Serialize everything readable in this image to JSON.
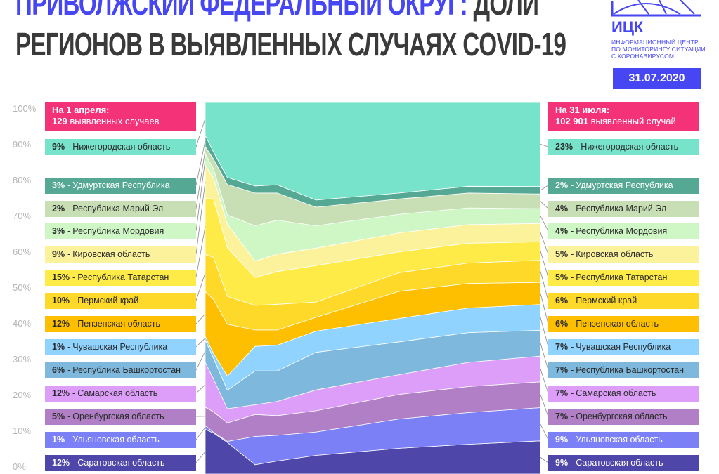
{
  "title": {
    "line1_blue": "ПРИВОЛЖСКИЙ ФЕДЕРАЛЬНЫЙ ОКРУГ:",
    "line1_dark": "ДОЛИ",
    "line2": "РЕГИОНОВ В ВЫЯВЛЕННЫХ СЛУЧАЯХ COVID-19"
  },
  "logo": {
    "abbr": "ИЦК",
    "sub": [
      "ИНФОРМАЦИОННЫЙ ЦЕНТР",
      "ПО МОНИТОРИНГУ СИТУАЦИИ",
      "С КОРОНАВИРУСОМ"
    ]
  },
  "date": "31.07.2020",
  "left_header": {
    "title": "На 1 апреля:",
    "count": "129",
    "rest": "выявленных случаев"
  },
  "right_header": {
    "title": "На 31 июля:",
    "count": "102 901",
    "rest": "выявленный случай"
  },
  "chart_data": {
    "type": "area",
    "stacked_percent": true,
    "ylim": [
      0,
      100
    ],
    "yticks": [
      "0%",
      "10%",
      "20%",
      "30%",
      "40%",
      "50%",
      "60%",
      "70%",
      "80%",
      "90%",
      "100%"
    ],
    "x_days": [
      0,
      3,
      8,
      18,
      26,
      40,
      70,
      95,
      121
    ],
    "series": [
      {
        "name": "Саратовская область",
        "color": "#4e46a8",
        "text": "#ffffff",
        "start": "12%",
        "end": "9%",
        "values": [
          12,
          11,
          8.5,
          2.5,
          3.5,
          5,
          6.9,
          8,
          9
        ]
      },
      {
        "name": "Ульяновская область",
        "color": "#7b80f7",
        "text": "#ffffff",
        "start": "1%",
        "end": "9%",
        "values": [
          1,
          0.2,
          0.3,
          7.6,
          6.9,
          6.3,
          7.9,
          8.5,
          9
        ]
      },
      {
        "name": "Оренбургская область",
        "color": "#b07fc6",
        "text": "#2a2a2a",
        "start": "5%",
        "end": "7%",
        "values": [
          5,
          5.5,
          5,
          5.9,
          5.3,
          5.7,
          6.6,
          7,
          7
        ]
      },
      {
        "name": "Самарская область",
        "color": "#dc9ef8",
        "text": "#2a2a2a",
        "start": "12%",
        "end": "7%",
        "values": [
          12,
          8.8,
          3.8,
          2.6,
          3.8,
          5.6,
          5.3,
          6.5,
          7
        ]
      },
      {
        "name": "Республика Башкортостан",
        "color": "#7fb8dd",
        "text": "#2a2a2a",
        "start": "6%",
        "end": "7%",
        "values": [
          6,
          5.6,
          5,
          9.1,
          8.2,
          10.1,
          8.8,
          8,
          7
        ]
      },
      {
        "name": "Чувашская Республика",
        "color": "#8fd3fe",
        "text": "#2a2a2a",
        "start": "1%",
        "end": "7%",
        "values": [
          1,
          1.3,
          3.8,
          6.6,
          6.9,
          5.7,
          6.3,
          6.6,
          7
        ]
      },
      {
        "name": "Пензенская область",
        "color": "#fdbf00",
        "text": "#2a2a2a",
        "start": "12%",
        "end": "6%",
        "values": [
          12,
          14.5,
          14,
          4.4,
          4.1,
          3.7,
          7.3,
          6.6,
          6
        ]
      },
      {
        "name": "Пермский край",
        "color": "#ffd929",
        "text": "#2a2a2a",
        "start": "10%",
        "end": "6%",
        "values": [
          10,
          11.3,
          7.5,
          6.6,
          6.9,
          4.1,
          5,
          5.5,
          6
        ]
      },
      {
        "name": "Республика Татарстан",
        "color": "#ffeb47",
        "text": "#2a2a2a",
        "start": "15%",
        "end": "5%",
        "values": [
          15,
          15.7,
          13.2,
          7.5,
          8.8,
          9.8,
          5.6,
          5.3,
          5
        ]
      },
      {
        "name": "Кировская область",
        "color": "#fdf29c",
        "text": "#2a2a2a",
        "start": "9%",
        "end": "5%",
        "values": [
          9,
          5.7,
          6.3,
          4.4,
          4.7,
          4.7,
          5.1,
          5,
          5
        ]
      },
      {
        "name": "Республика Мордовия",
        "color": "#cff7c6",
        "text": "#2a2a2a",
        "start": "3%",
        "end": "4%",
        "values": [
          3,
          2.4,
          2.5,
          9.5,
          9.1,
          6,
          5,
          4.5,
          4
        ]
      },
      {
        "name": "Республика Марий Эл",
        "color": "#c8dfb6",
        "text": "#2a2a2a",
        "start": "2%",
        "end": "4%",
        "values": [
          2,
          2.6,
          8.2,
          8.8,
          7.3,
          5,
          4.1,
          4,
          4
        ]
      },
      {
        "name": "Удмуртская Республика",
        "color": "#55a893",
        "text": "#ffffff",
        "start": "3%",
        "end": "2%",
        "values": [
          3,
          1.9,
          1.9,
          1.9,
          2.2,
          1.9,
          1.6,
          1.8,
          2
        ]
      },
      {
        "name": "Нижегородская область",
        "color": "#78e3cb",
        "text": "#2a2a2a",
        "start": "9%",
        "end": "23%",
        "values": [
          9,
          13.5,
          20.4,
          22.6,
          22.3,
          26.4,
          24.5,
          22.7,
          23
        ]
      }
    ]
  }
}
